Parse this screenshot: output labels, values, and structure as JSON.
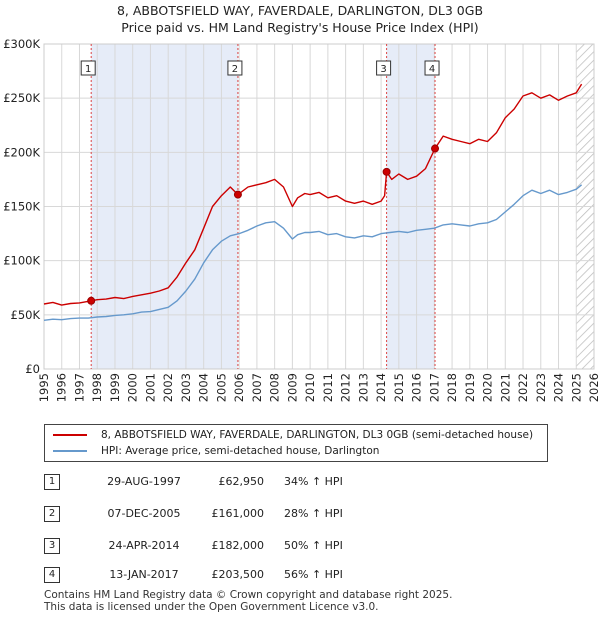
{
  "title": {
    "line1": "8, ABBOTSFIELD WAY, FAVERDALE, DARLINGTON, DL3 0GB",
    "line2": "Price paid vs. HM Land Registry's House Price Index (HPI)"
  },
  "legend": {
    "property": "8, ABBOTSFIELD WAY, FAVERDALE, DARLINGTON, DL3 0GB (semi-detached house)",
    "hpi": "HPI: Average price, semi-detached house, Darlington"
  },
  "colors": {
    "property": "#cc0000",
    "hpi": "#6699cc",
    "shade": "#e6ecf8",
    "grid": "#d8d8d8"
  },
  "transactions": [
    {
      "id": "1",
      "date": "29-AUG-1997",
      "price": "£62,950",
      "hpi": "34% ↑ HPI"
    },
    {
      "id": "2",
      "date": "07-DEC-2005",
      "price": "£161,000",
      "hpi": "28% ↑ HPI"
    },
    {
      "id": "3",
      "date": "24-APR-2014",
      "price": "£182,000",
      "hpi": "50% ↑ HPI"
    },
    {
      "id": "4",
      "date": "13-JAN-2017",
      "price": "£203,500",
      "hpi": "56% ↑ HPI"
    }
  ],
  "footer": {
    "line1": "Contains HM Land Registry data © Crown copyright and database right 2025.",
    "line2": "This data is licensed under the Open Government Licence v3.0."
  },
  "chart_data": {
    "type": "line",
    "title": "8, ABBOTSFIELD WAY, FAVERDALE, DARLINGTON, DL3 0GB",
    "subtitle": "Price paid vs. HM Land Registry's House Price Index (HPI)",
    "xlabel": "",
    "ylabel": "",
    "xlim": [
      1995,
      2026
    ],
    "ylim": [
      0,
      300000
    ],
    "y_ticks": [
      0,
      50000,
      100000,
      150000,
      200000,
      250000,
      300000
    ],
    "y_tick_labels": [
      "£0",
      "£50K",
      "£100K",
      "£150K",
      "£200K",
      "£250K",
      "£300K"
    ],
    "x_ticks": [
      1995,
      1996,
      1997,
      1998,
      1999,
      2000,
      2001,
      2002,
      2003,
      2004,
      2005,
      2006,
      2007,
      2008,
      2009,
      2010,
      2011,
      2012,
      2013,
      2014,
      2015,
      2016,
      2017,
      2018,
      2019,
      2020,
      2021,
      2022,
      2023,
      2024,
      2025,
      2026
    ],
    "grid": true,
    "legend_position": "below",
    "shaded_ranges": [
      [
        1997.66,
        2005.93
      ],
      [
        2014.31,
        2017.04
      ]
    ],
    "future_hatch_from": 2025.0,
    "markers": [
      {
        "label": "1",
        "x": 1997.66,
        "y": 62950
      },
      {
        "label": "2",
        "x": 2005.93,
        "y": 161000
      },
      {
        "label": "3",
        "x": 2014.31,
        "y": 182000
      },
      {
        "label": "4",
        "x": 2017.04,
        "y": 203500
      }
    ],
    "series": [
      {
        "name": "8, ABBOTSFIELD WAY, FAVERDALE, DARLINGTON, DL3 0GB (semi-detached house)",
        "x": [
          1995.0,
          1995.5,
          1996.0,
          1996.5,
          1997.0,
          1997.66,
          1998.0,
          1998.5,
          1999.0,
          1999.5,
          2000.0,
          2000.5,
          2001.0,
          2001.5,
          2002.0,
          2002.5,
          2003.0,
          2003.5,
          2004.0,
          2004.5,
          2005.0,
          2005.5,
          2005.93,
          2006.5,
          2007.0,
          2007.5,
          2008.0,
          2008.5,
          2009.0,
          2009.3,
          2009.7,
          2010.0,
          2010.5,
          2011.0,
          2011.5,
          2012.0,
          2012.5,
          2013.0,
          2013.5,
          2014.0,
          2014.2,
          2014.31,
          2014.6,
          2015.0,
          2015.5,
          2016.0,
          2016.5,
          2017.04,
          2017.5,
          2018.0,
          2018.5,
          2019.0,
          2019.5,
          2020.0,
          2020.5,
          2021.0,
          2021.5,
          2022.0,
          2022.5,
          2023.0,
          2023.5,
          2024.0,
          2024.5,
          2025.0,
          2025.3
        ],
        "y": [
          60000,
          61500,
          59000,
          60500,
          61000,
          62950,
          64000,
          64500,
          66000,
          65000,
          67000,
          68500,
          70000,
          72000,
          75000,
          85000,
          98000,
          110000,
          130000,
          150000,
          160000,
          168000,
          161000,
          168000,
          170000,
          172000,
          175000,
          168000,
          150000,
          158000,
          162000,
          161000,
          163000,
          158000,
          160000,
          155000,
          153000,
          155000,
          152000,
          155000,
          160000,
          182000,
          175000,
          180000,
          175000,
          178000,
          185000,
          203500,
          215000,
          212000,
          210000,
          208000,
          212000,
          210000,
          218000,
          232000,
          240000,
          252000,
          255000,
          250000,
          253000,
          248000,
          252000,
          255000,
          263000
        ]
      },
      {
        "name": "HPI: Average price, semi-detached house, Darlington",
        "x": [
          1995.0,
          1995.5,
          1996.0,
          1996.5,
          1997.0,
          1997.5,
          1998.0,
          1998.5,
          1999.0,
          1999.5,
          2000.0,
          2000.5,
          2001.0,
          2001.5,
          2002.0,
          2002.5,
          2003.0,
          2003.5,
          2004.0,
          2004.5,
          2005.0,
          2005.5,
          2006.0,
          2006.5,
          2007.0,
          2007.5,
          2008.0,
          2008.5,
          2009.0,
          2009.3,
          2009.7,
          2010.0,
          2010.5,
          2011.0,
          2011.5,
          2012.0,
          2012.5,
          2013.0,
          2013.5,
          2014.0,
          2014.5,
          2015.0,
          2015.5,
          2016.0,
          2016.5,
          2017.0,
          2017.5,
          2018.0,
          2018.5,
          2019.0,
          2019.5,
          2020.0,
          2020.5,
          2021.0,
          2021.5,
          2022.0,
          2022.5,
          2023.0,
          2023.5,
          2024.0,
          2024.5,
          2025.0,
          2025.3
        ],
        "y": [
          45000,
          46000,
          45500,
          46500,
          47000,
          47000,
          48000,
          48500,
          49500,
          50000,
          51000,
          52500,
          53000,
          55000,
          57000,
          63000,
          72000,
          83000,
          98000,
          110000,
          118000,
          123000,
          125000,
          128000,
          132000,
          135000,
          136000,
          130000,
          120000,
          124000,
          126000,
          126000,
          127000,
          124000,
          125000,
          122000,
          121000,
          123000,
          122000,
          125000,
          126000,
          127000,
          126000,
          128000,
          129000,
          130000,
          133000,
          134000,
          133000,
          132000,
          134000,
          135000,
          138000,
          145000,
          152000,
          160000,
          165000,
          162000,
          165000,
          161000,
          163000,
          166000,
          170000
        ]
      }
    ]
  }
}
